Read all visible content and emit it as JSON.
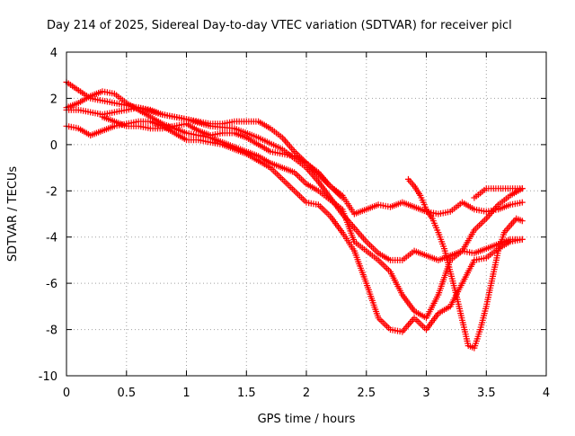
{
  "chart_data": {
    "type": "scatter",
    "title": "Day 214 of 2025, Sidereal Day-to-day VTEC variation (SDTVAR) for receiver picl",
    "xlabel": "GPS time / hours",
    "ylabel": "SDTVAR / TECUs",
    "xlim": [
      0,
      4
    ],
    "ylim": [
      -10,
      4
    ],
    "xticks": [
      0,
      0.5,
      1,
      1.5,
      2,
      2.5,
      3,
      3.5,
      4
    ],
    "xtick_labels": [
      "0",
      "0.5",
      "1",
      "1.5",
      "2",
      "2.5",
      "3",
      "3.5",
      "4"
    ],
    "yticks": [
      -10,
      -8,
      -6,
      -4,
      -2,
      0,
      2,
      4
    ],
    "ytick_labels": [
      "-10",
      "-8",
      "-6",
      "-4",
      "-2",
      "0",
      "2",
      "4"
    ],
    "grid": true,
    "marker": "+",
    "color": "#ff0000",
    "series": [
      {
        "name": "track-1",
        "x": [
          0,
          0.2,
          0.4,
          0.6,
          0.8,
          1.0,
          1.2,
          1.4,
          1.6,
          1.8,
          1.9,
          2.0,
          2.1,
          2.2,
          2.3,
          2.4,
          2.5,
          2.6,
          2.7,
          2.8,
          2.9,
          3.0,
          3.1,
          3.2,
          3.3,
          3.4,
          3.5,
          3.6,
          3.7,
          3.8
        ],
        "y": [
          2.7,
          2.0,
          1.8,
          1.6,
          1.3,
          1.1,
          0.8,
          0.7,
          0.3,
          -0.2,
          -0.6,
          -1.0,
          -1.6,
          -2.3,
          -3.0,
          -3.6,
          -4.2,
          -4.7,
          -5.0,
          -5.0,
          -4.6,
          -4.8,
          -5.0,
          -4.8,
          -4.6,
          -4.7,
          -4.5,
          -4.3,
          -4.1,
          -4.1
        ]
      },
      {
        "name": "track-2",
        "x": [
          0,
          0.1,
          0.2,
          0.3,
          0.4,
          0.5,
          0.6,
          0.7,
          0.8,
          0.9,
          1.0,
          1.1,
          1.2,
          1.3,
          1.4,
          1.5,
          1.6,
          1.7,
          1.8,
          1.9,
          2.0,
          2.1,
          2.2,
          2.3,
          2.4,
          2.5,
          2.6,
          2.7,
          2.8,
          2.9,
          3.0,
          3.1,
          3.2,
          3.3,
          3.4,
          3.5,
          3.6,
          3.7,
          3.8
        ],
        "y": [
          0.8,
          0.7,
          0.4,
          0.6,
          0.8,
          0.9,
          1.0,
          1.0,
          0.8,
          0.5,
          0.2,
          0.2,
          0.1,
          0.0,
          -0.2,
          -0.4,
          -0.7,
          -1.0,
          -1.5,
          -2.0,
          -2.5,
          -2.6,
          -3.1,
          -3.8,
          -4.6,
          -6.0,
          -7.5,
          -8.0,
          -8.1,
          -7.5,
          -8.0,
          -7.3,
          -7.0,
          -6.0,
          -5.0,
          -4.9,
          -4.5,
          -4.2,
          -4.1
        ]
      },
      {
        "name": "track-3",
        "x": [
          0,
          0.1,
          0.2,
          0.3,
          0.4,
          0.5,
          0.6,
          0.7,
          0.8,
          0.9,
          1.0,
          1.1,
          1.2,
          1.3,
          1.4,
          1.5,
          1.6,
          1.7,
          1.8,
          1.9,
          2.0,
          2.1,
          2.2,
          2.3,
          2.4,
          2.5,
          2.6,
          2.7,
          2.8,
          2.9,
          3.0,
          3.1,
          3.2,
          3.3,
          3.4,
          3.5,
          3.6,
          3.7,
          3.8
        ],
        "y": [
          1.6,
          1.8,
          2.1,
          2.3,
          2.2,
          1.8,
          1.5,
          1.2,
          0.9,
          0.7,
          0.5,
          0.4,
          0.3,
          0.1,
          -0.1,
          -0.3,
          -0.5,
          -0.8,
          -1.0,
          -1.2,
          -1.7,
          -2.0,
          -2.4,
          -2.8,
          -4.2,
          -4.6,
          -5.0,
          -5.5,
          -6.5,
          -7.2,
          -7.5,
          -6.5,
          -5.0,
          -4.6,
          -3.7,
          -3.2,
          -2.6,
          -2.2,
          -1.9
        ]
      },
      {
        "name": "track-4",
        "x": [
          0,
          0.1,
          0.2,
          0.3,
          0.4,
          0.5,
          0.6,
          0.7,
          0.8,
          0.9,
          1.0,
          1.1,
          1.2,
          1.3,
          1.4,
          1.5,
          1.6,
          1.7,
          1.8,
          1.9,
          2.0,
          2.1,
          2.2,
          2.3,
          2.4,
          2.5,
          2.6,
          2.7,
          2.8,
          2.9,
          3.0,
          3.1,
          3.2,
          3.3,
          3.4,
          3.5,
          3.6,
          3.7,
          3.8
        ],
        "y": [
          1.5,
          1.5,
          1.4,
          1.3,
          1.4,
          1.5,
          1.6,
          1.5,
          1.3,
          1.2,
          1.1,
          1.0,
          0.9,
          0.9,
          1.0,
          1.0,
          1.0,
          0.7,
          0.3,
          -0.3,
          -0.8,
          -1.2,
          -1.8,
          -2.2,
          -3.0,
          -2.8,
          -2.6,
          -2.7,
          -2.5,
          -2.7,
          -2.9,
          -3.0,
          -2.9,
          -2.5,
          -2.8,
          -2.9,
          -2.8,
          -2.6,
          -2.5
        ]
      },
      {
        "name": "track-5",
        "x": [
          2.85,
          2.9,
          2.95,
          3.0,
          3.05,
          3.1,
          3.15,
          3.2,
          3.25,
          3.3,
          3.35,
          3.4,
          3.45,
          3.5,
          3.55,
          3.6,
          3.65,
          3.7,
          3.75,
          3.8
        ],
        "y": [
          -1.5,
          -1.8,
          -2.2,
          -2.8,
          -3.2,
          -3.8,
          -4.5,
          -5.5,
          -6.5,
          -7.6,
          -8.7,
          -8.8,
          -8.0,
          -7.0,
          -5.8,
          -4.6,
          -3.8,
          -3.5,
          -3.2,
          -3.3
        ]
      },
      {
        "name": "track-6",
        "x": [
          0.3,
          0.4,
          0.5,
          0.6,
          0.7,
          0.8,
          0.9,
          1.0,
          1.1,
          1.2,
          1.3,
          1.4,
          1.5,
          1.6,
          1.7,
          1.8,
          1.9,
          2.0,
          2.1,
          2.2,
          2.3
        ],
        "y": [
          1.2,
          1.0,
          0.8,
          0.8,
          0.7,
          0.7,
          0.8,
          0.9,
          0.6,
          0.4,
          0.5,
          0.5,
          0.3,
          0.0,
          -0.3,
          -0.4,
          -0.5,
          -0.8,
          -1.3,
          -1.8,
          -2.3
        ]
      },
      {
        "name": "track-7",
        "x": [
          3.4,
          3.5,
          3.6,
          3.7,
          3.8
        ],
        "y": [
          -2.3,
          -1.9,
          -1.9,
          -1.9,
          -1.9
        ]
      }
    ]
  }
}
